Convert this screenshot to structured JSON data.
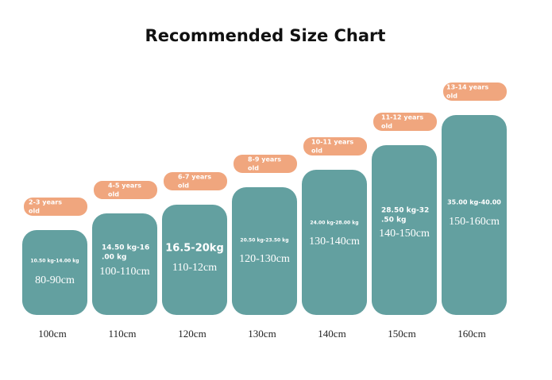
{
  "title": "Recommended Size Chart",
  "columns": [
    {
      "age": [
        "2-3 years",
        "old"
      ],
      "weight": [
        "10.50 kg-14.00 kg"
      ],
      "height": "80-90cm",
      "size": "100cm"
    },
    {
      "age": [
        "4-5 years",
        "old"
      ],
      "weight": [
        "14.50 kg-16",
        ".00 kg"
      ],
      "height": "100-110cm",
      "size": "110cm"
    },
    {
      "age": [
        "6-7 years",
        "old"
      ],
      "weight": [
        "16.5-20kg"
      ],
      "height": "110-12cm",
      "size": "120cm"
    },
    {
      "age": [
        "8-9 years",
        "old"
      ],
      "weight": [
        "20.50 kg-23.50 kg"
      ],
      "height": "120-130cm",
      "size": "130cm"
    },
    {
      "age": [
        "10-11 years",
        "old"
      ],
      "weight": [
        "24.00 kg-28.00 kg"
      ],
      "height": "130-140cm",
      "size": "140cm"
    },
    {
      "age": [
        "11-12 years",
        "old"
      ],
      "weight": [
        "28.50 kg-32",
        ".50 kg"
      ],
      "height": "140-150cm",
      "size": "150cm"
    },
    {
      "age": [
        "13-14 years",
        "old"
      ],
      "weight": [
        "35.00 kg-40.00"
      ],
      "height": "150-160cm",
      "size": "160cm"
    }
  ]
}
